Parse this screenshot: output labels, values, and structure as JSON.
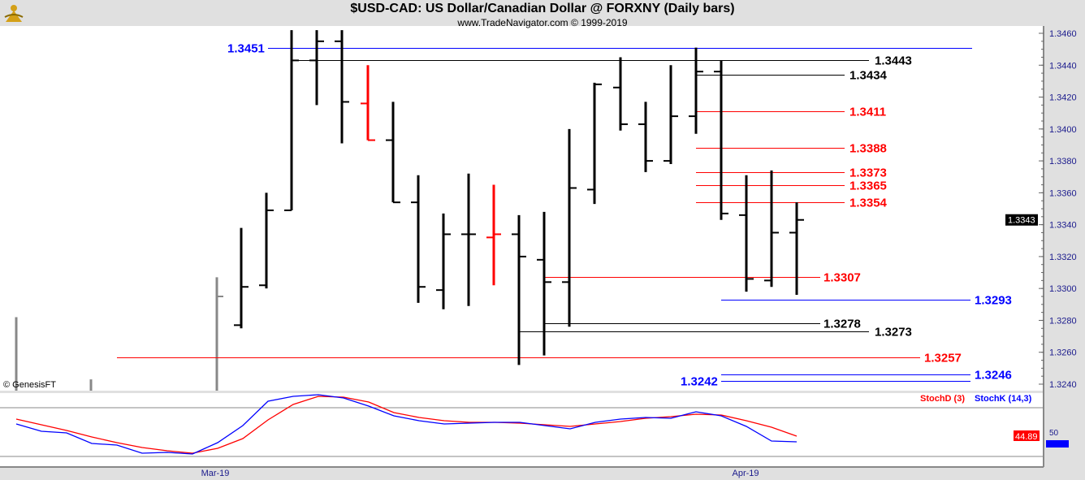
{
  "header": {
    "title": "$USD-CAD:  US Dollar/Canadian Dollar @ FORXNY  (Daily bars)",
    "subtitle": "www.TradeNavigator.com © 1999-2019"
  },
  "copyright": "© GenesisFT",
  "chart_data": [
    {
      "type": "ohlc",
      "ylim": [
        1.3235,
        1.3463
      ],
      "yticks": [
        "1.3460",
        "1.3440",
        "1.3420",
        "1.3400",
        "1.3380",
        "1.3360",
        "1.3340",
        "1.3320",
        "1.3300",
        "1.3280",
        "1.3260",
        "1.3240"
      ],
      "xticks": [
        "Mar-19",
        "Apr-19"
      ],
      "last_price": "1.3343",
      "bars": [
        {
          "o": 1.3277,
          "h": 1.3338,
          "l": 1.3275,
          "c": 1.3301,
          "color": "#000000"
        },
        {
          "o": 1.3302,
          "h": 1.336,
          "l": 1.33,
          "c": 1.3349,
          "color": "#000000"
        },
        {
          "o": 1.3349,
          "h": 1.3462,
          "l": 1.3349,
          "c": 1.3443,
          "color": "#000000"
        },
        {
          "o": 1.3443,
          "h": 1.3462,
          "l": 1.3415,
          "c": 1.3455,
          "color": "#000000"
        },
        {
          "o": 1.3455,
          "h": 1.3462,
          "l": 1.3391,
          "c": 1.3417,
          "color": "#000000"
        },
        {
          "o": 1.3416,
          "h": 1.344,
          "l": 1.3393,
          "c": 1.3393,
          "color": "#ff0000"
        },
        {
          "o": 1.3393,
          "h": 1.3417,
          "l": 1.3354,
          "c": 1.3354,
          "color": "#000000"
        },
        {
          "o": 1.3354,
          "h": 1.3371,
          "l": 1.3291,
          "c": 1.3301,
          "color": "#000000"
        },
        {
          "o": 1.3299,
          "h": 1.3347,
          "l": 1.3287,
          "c": 1.3334,
          "color": "#000000"
        },
        {
          "o": 1.3334,
          "h": 1.3372,
          "l": 1.3289,
          "c": 1.3334,
          "color": "#000000"
        },
        {
          "o": 1.3332,
          "h": 1.3365,
          "l": 1.3302,
          "c": 1.3334,
          "color": "#ff0000"
        },
        {
          "o": 1.3334,
          "h": 1.3346,
          "l": 1.3252,
          "c": 1.332,
          "color": "#000000"
        },
        {
          "o": 1.3318,
          "h": 1.3348,
          "l": 1.3258,
          "c": 1.3304,
          "color": "#000000"
        },
        {
          "o": 1.3304,
          "h": 1.34,
          "l": 1.3276,
          "c": 1.3363,
          "color": "#000000"
        },
        {
          "o": 1.3362,
          "h": 1.3429,
          "l": 1.3353,
          "c": 1.3428,
          "color": "#000000"
        },
        {
          "o": 1.3426,
          "h": 1.3445,
          "l": 1.3399,
          "c": 1.3403,
          "color": "#000000"
        },
        {
          "o": 1.3403,
          "h": 1.3417,
          "l": 1.3373,
          "c": 1.338,
          "color": "#000000"
        },
        {
          "o": 1.338,
          "h": 1.344,
          "l": 1.3378,
          "c": 1.3408,
          "color": "#000000"
        },
        {
          "o": 1.3408,
          "h": 1.3451,
          "l": 1.3397,
          "c": 1.3436,
          "color": "#000000"
        },
        {
          "o": 1.3436,
          "h": 1.3443,
          "l": 1.3343,
          "c": 1.3347,
          "color": "#000000"
        },
        {
          "o": 1.3346,
          "h": 1.3371,
          "l": 1.3298,
          "c": 1.3306,
          "color": "#000000"
        },
        {
          "o": 1.3305,
          "h": 1.3374,
          "l": 1.3301,
          "c": 1.3335,
          "color": "#000000"
        },
        {
          "o": 1.3335,
          "h": 1.3354,
          "l": 1.3296,
          "c": 1.3343,
          "color": "#000000"
        }
      ],
      "levels": [
        {
          "value": "1.3451",
          "color": "#0000ff"
        },
        {
          "value": "1.3443",
          "color": "#000000"
        },
        {
          "value": "1.3434",
          "color": "#000000"
        },
        {
          "value": "1.3411",
          "color": "#ff0000"
        },
        {
          "value": "1.3388",
          "color": "#ff0000"
        },
        {
          "value": "1.3373",
          "color": "#ff0000"
        },
        {
          "value": "1.3365",
          "color": "#ff0000"
        },
        {
          "value": "1.3354",
          "color": "#ff0000"
        },
        {
          "value": "1.3307",
          "color": "#ff0000"
        },
        {
          "value": "1.3293",
          "color": "#0000ff"
        },
        {
          "value": "1.3278",
          "color": "#000000"
        },
        {
          "value": "1.3273",
          "color": "#000000"
        },
        {
          "value": "1.3257",
          "color": "#ff0000"
        },
        {
          "value": "1.3246",
          "color": "#0000ff"
        },
        {
          "value": "1.3242",
          "color": "#0000ff"
        }
      ]
    },
    {
      "type": "line",
      "ylim": [
        0,
        100
      ],
      "yticks": [
        "50"
      ],
      "reference_lines": [
        20,
        80
      ],
      "series": [
        {
          "name": "StochD (3)",
          "color": "#ff0000",
          "last": "44.89",
          "values": [
            66,
            59,
            52,
            44,
            37,
            31,
            27,
            24,
            30,
            42,
            65,
            84,
            94,
            93,
            87,
            74,
            68,
            64,
            62,
            62,
            61,
            59,
            57,
            60,
            63,
            67,
            69,
            72,
            71,
            64,
            56,
            45
          ]
        },
        {
          "name": "StochK (14,3)",
          "color": "#0000ff",
          "values": [
            60,
            51,
            49,
            36,
            34,
            24,
            25,
            23,
            37,
            58,
            88,
            94,
            96,
            92,
            82,
            70,
            64,
            60,
            61,
            62,
            62,
            58,
            54,
            62,
            66,
            68,
            67,
            75,
            70,
            57,
            39,
            38
          ]
        }
      ]
    }
  ]
}
